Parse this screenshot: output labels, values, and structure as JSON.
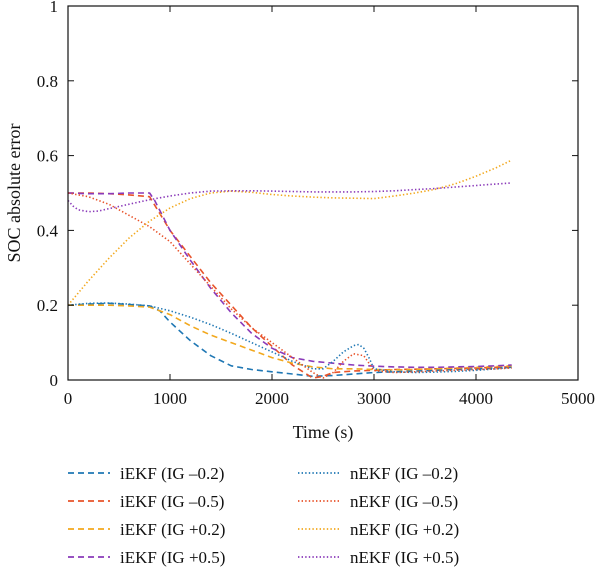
{
  "chart_data": {
    "type": "line",
    "xlabel": "Time (s)",
    "ylabel": "SOC absolute error",
    "xlim": [
      0,
      5000
    ],
    "ylim": [
      0,
      1
    ],
    "xticks": [
      0,
      1000,
      2000,
      3000,
      4000,
      5000
    ],
    "yticks": [
      0,
      0.2,
      0.4,
      0.6,
      0.8,
      1
    ],
    "xtick_labels": [
      "0",
      "1000",
      "2000",
      "3000",
      "4000",
      "5000"
    ],
    "ytick_labels": [
      "0",
      "0.2",
      "0.4",
      "0.6",
      "0.8",
      "1"
    ],
    "grid": false,
    "legend_position": "bottom",
    "series": [
      {
        "name": "iEKF (IG –0.2)",
        "color": "#1f77b4",
        "dash": "dashed",
        "x": [
          0,
          200,
          400,
          600,
          800,
          900,
          1000,
          1200,
          1400,
          1600,
          1800,
          2000,
          2200,
          2400,
          2600,
          2800,
          3000,
          3200,
          3400,
          3600,
          3800,
          4000,
          4200,
          4350
        ],
        "y": [
          0.2,
          0.203,
          0.205,
          0.202,
          0.198,
          0.185,
          0.155,
          0.105,
          0.065,
          0.038,
          0.028,
          0.022,
          0.016,
          0.01,
          0.012,
          0.016,
          0.02,
          0.022,
          0.024,
          0.026,
          0.028,
          0.03,
          0.032,
          0.034
        ]
      },
      {
        "name": "iEKF (IG –0.5)",
        "color": "#e8532a",
        "dash": "dashed",
        "x": [
          0,
          200,
          400,
          600,
          800,
          1000,
          1200,
          1400,
          1600,
          1800,
          2000,
          2200,
          2400,
          2500,
          2600,
          2800,
          3000,
          3200,
          3400,
          3600,
          3800,
          4000,
          4200,
          4350
        ],
        "y": [
          0.5,
          0.5,
          0.498,
          0.495,
          0.49,
          0.4,
          0.33,
          0.26,
          0.2,
          0.14,
          0.09,
          0.04,
          0.005,
          0.01,
          0.02,
          0.024,
          0.026,
          0.028,
          0.029,
          0.03,
          0.031,
          0.032,
          0.034,
          0.035
        ]
      },
      {
        "name": "iEKF (IG +0.2)",
        "color": "#f2a81d",
        "dash": "dashed",
        "x": [
          0,
          200,
          400,
          600,
          800,
          1000,
          1200,
          1400,
          1600,
          1800,
          2000,
          2200,
          2400,
          2600,
          2800,
          3000,
          3200,
          3400,
          3600,
          3800,
          4000,
          4200,
          4350
        ],
        "y": [
          0.2,
          0.2,
          0.2,
          0.198,
          0.195,
          0.175,
          0.145,
          0.12,
          0.1,
          0.08,
          0.06,
          0.045,
          0.035,
          0.03,
          0.03,
          0.028,
          0.027,
          0.028,
          0.03,
          0.032,
          0.034,
          0.036,
          0.038
        ]
      },
      {
        "name": "iEKF (IG +0.5)",
        "color": "#8a3ab9",
        "dash": "dashed",
        "x": [
          0,
          200,
          400,
          600,
          800,
          850,
          1000,
          1200,
          1400,
          1600,
          1800,
          2000,
          2200,
          2400,
          2600,
          2800,
          3000,
          3200,
          3400,
          3600,
          3800,
          4000,
          4200,
          4350
        ],
        "y": [
          0.5,
          0.498,
          0.498,
          0.5,
          0.5,
          0.48,
          0.4,
          0.32,
          0.245,
          0.18,
          0.125,
          0.085,
          0.06,
          0.05,
          0.045,
          0.04,
          0.037,
          0.035,
          0.034,
          0.034,
          0.035,
          0.036,
          0.038,
          0.04
        ]
      },
      {
        "name": "nEKF (IG –0.2)",
        "color": "#1f77b4",
        "dash": "dotted",
        "x": [
          0,
          200,
          400,
          600,
          800,
          1000,
          1200,
          1400,
          1600,
          1800,
          2000,
          2200,
          2400,
          2500,
          2600,
          2700,
          2800,
          2850,
          2900,
          2950,
          3000,
          3200,
          3400,
          3600,
          3800,
          4000,
          4200,
          4350
        ],
        "y": [
          0.2,
          0.205,
          0.206,
          0.203,
          0.198,
          0.185,
          0.168,
          0.148,
          0.125,
          0.1,
          0.075,
          0.05,
          0.03,
          0.03,
          0.05,
          0.075,
          0.092,
          0.095,
          0.085,
          0.06,
          0.03,
          0.022,
          0.02,
          0.021,
          0.023,
          0.026,
          0.03,
          0.034
        ]
      },
      {
        "name": "nEKF (IG –0.5)",
        "color": "#e8532a",
        "dash": "dotted",
        "x": [
          0,
          200,
          400,
          600,
          800,
          1000,
          1200,
          1400,
          1600,
          1800,
          2000,
          2200,
          2400,
          2500,
          2600,
          2700,
          2800,
          2900,
          3000,
          3200,
          3400,
          3600,
          3800,
          4000,
          4200,
          4350
        ],
        "y": [
          0.5,
          0.49,
          0.47,
          0.44,
          0.41,
          0.37,
          0.31,
          0.25,
          0.19,
          0.14,
          0.1,
          0.06,
          0.02,
          0.005,
          0.02,
          0.05,
          0.07,
          0.065,
          0.025,
          0.02,
          0.022,
          0.024,
          0.026,
          0.028,
          0.03,
          0.032
        ]
      },
      {
        "name": "nEKF (IG +0.2)",
        "color": "#f2a81d",
        "dash": "dotted",
        "x": [
          0,
          200,
          400,
          600,
          800,
          1000,
          1200,
          1400,
          1600,
          1800,
          2000,
          2200,
          2400,
          2600,
          2800,
          3000,
          3200,
          3400,
          3600,
          3800,
          4000,
          4200,
          4350
        ],
        "y": [
          0.2,
          0.265,
          0.325,
          0.38,
          0.425,
          0.46,
          0.485,
          0.5,
          0.505,
          0.502,
          0.496,
          0.492,
          0.489,
          0.487,
          0.486,
          0.485,
          0.492,
          0.5,
          0.51,
          0.525,
          0.545,
          0.568,
          0.588
        ]
      },
      {
        "name": "nEKF (IG +0.5)",
        "color": "#8a3ab9",
        "dash": "dotted",
        "x": [
          0,
          50,
          100,
          200,
          300,
          400,
          600,
          800,
          1000,
          1200,
          1400,
          1600,
          1800,
          2000,
          2200,
          2400,
          2600,
          2800,
          3000,
          3200,
          3400,
          3600,
          3800,
          4000,
          4200,
          4350
        ],
        "y": [
          0.48,
          0.465,
          0.455,
          0.45,
          0.452,
          0.458,
          0.47,
          0.482,
          0.492,
          0.5,
          0.505,
          0.506,
          0.506,
          0.505,
          0.504,
          0.503,
          0.503,
          0.503,
          0.504,
          0.506,
          0.509,
          0.512,
          0.516,
          0.52,
          0.524,
          0.527
        ]
      }
    ]
  }
}
